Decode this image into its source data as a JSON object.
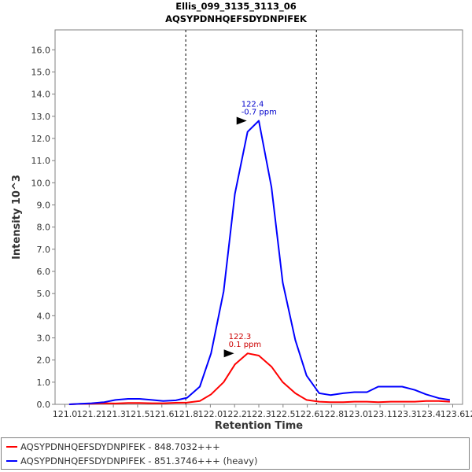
{
  "title_lines": [
    "Ellis_099_3135_3113_06",
    "AQSYPDNHQEFSDYDNPIFEK"
  ],
  "chart_data": {
    "type": "line",
    "xlabel": "Retention Time",
    "ylabel": "Intensity 10^3",
    "xlim": [
      121.0,
      123.9
    ],
    "ylim": [
      0,
      16.9
    ],
    "x_ticks": [
      "121.0",
      "121.2",
      "121.3",
      "121.5",
      "121.6",
      "121.8",
      "122.0",
      "122.2",
      "122.3",
      "122.5",
      "122.6",
      "122.8",
      "123.0",
      "123.1",
      "123.3",
      "123.4",
      "123.6",
      "123.8"
    ],
    "y_ticks": [
      "0.0",
      "1.0",
      "2.0",
      "3.0",
      "4.0",
      "5.0",
      "6.0",
      "7.0",
      "8.0",
      "9.0",
      "10.0",
      "11.0",
      "12.0",
      "13.0",
      "14.0",
      "15.0",
      "16.0"
    ],
    "y_tick_values": [
      0,
      1,
      2,
      3,
      4,
      5,
      6,
      7,
      8,
      9,
      10,
      11,
      12,
      13,
      14,
      15,
      16
    ],
    "vlines": [
      121.93,
      122.86
    ],
    "grid": false,
    "legend_position": "bottom",
    "series": [
      {
        "name": "AQSYPDNHQEFSDYDNPIFEK - 848.7032+++",
        "color": "#ff0000",
        "x": [
          121.1,
          121.18,
          121.26,
          121.35,
          121.43,
          121.52,
          121.6,
          121.69,
          121.77,
          121.86,
          121.94,
          122.03,
          122.11,
          122.2,
          122.28,
          122.37,
          122.45,
          122.54,
          122.62,
          122.71,
          122.79,
          122.88,
          122.96,
          123.05,
          123.13,
          123.22,
          123.3,
          123.39,
          123.47,
          123.56,
          123.64,
          123.73,
          123.81
        ],
        "y": [
          0.0,
          0.02,
          0.03,
          0.05,
          0.04,
          0.06,
          0.06,
          0.05,
          0.05,
          0.07,
          0.08,
          0.15,
          0.45,
          1.0,
          1.8,
          2.3,
          2.2,
          1.7,
          1.0,
          0.5,
          0.2,
          0.12,
          0.1,
          0.1,
          0.12,
          0.12,
          0.1,
          0.12,
          0.12,
          0.12,
          0.15,
          0.15,
          0.12
        ]
      },
      {
        "name": "AQSYPDNHQEFSDYDNPIFEK - 851.3746+++ (heavy)",
        "color": "#0000ff",
        "x": [
          121.1,
          121.18,
          121.26,
          121.35,
          121.43,
          121.52,
          121.6,
          121.69,
          121.77,
          121.86,
          121.94,
          122.03,
          122.11,
          122.2,
          122.28,
          122.37,
          122.45,
          122.54,
          122.62,
          122.71,
          122.79,
          122.88,
          122.96,
          123.05,
          123.13,
          123.22,
          123.3,
          123.39,
          123.47,
          123.56,
          123.64,
          123.73,
          123.81
        ],
        "y": [
          0.0,
          0.03,
          0.05,
          0.1,
          0.2,
          0.25,
          0.25,
          0.2,
          0.15,
          0.18,
          0.3,
          0.8,
          2.3,
          5.1,
          9.5,
          12.3,
          12.8,
          9.8,
          5.5,
          2.9,
          1.3,
          0.5,
          0.42,
          0.5,
          0.55,
          0.55,
          0.8,
          0.8,
          0.8,
          0.65,
          0.45,
          0.28,
          0.2
        ]
      }
    ],
    "annotations": [
      {
        "x": 122.37,
        "y": 12.8,
        "lines": [
          "122.4",
          "-0.7 ppm"
        ],
        "color": "#0000cc"
      },
      {
        "x": 122.28,
        "y": 2.3,
        "lines": [
          "122.3",
          "0.1 ppm"
        ],
        "color": "#cc0000"
      }
    ]
  }
}
